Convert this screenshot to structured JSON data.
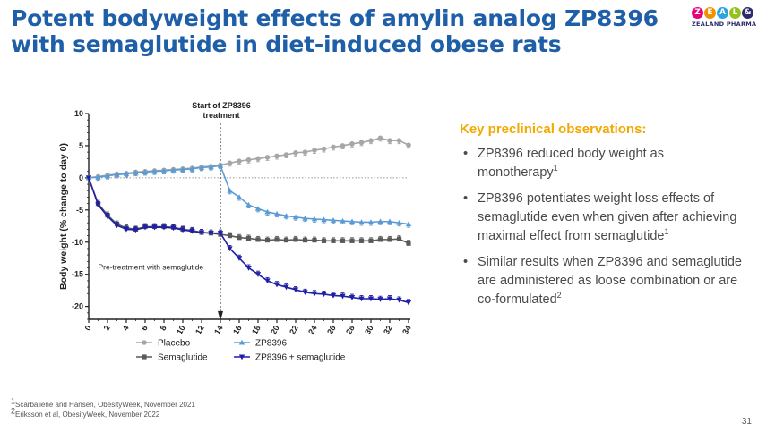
{
  "slide": {
    "title_line1": "Potent bodyweight effects of amylin analog ZP8396",
    "title_line2": "with semaglutide in diet-induced obese rats",
    "page_number": "31"
  },
  "logo": {
    "letters": [
      "Z",
      "E",
      "A",
      "L",
      "&"
    ],
    "letter_colors": [
      "#e6007e",
      "#f29100",
      "#2aa5df",
      "#95c11f",
      "#2c2c6c"
    ],
    "subtitle": "ZEALAND PHARMA"
  },
  "observations": {
    "title": "Key preclinical observations:",
    "bullet_glyph": "•",
    "items": [
      {
        "text": "ZP8396 reduced body weight as monotherapy",
        "sup": "1"
      },
      {
        "text": "ZP8396 potentiates weight loss effects of semaglutide even when given after achieving maximal effect from semaglutide",
        "sup": "1"
      },
      {
        "text": "Similar results when ZP8396 and semaglutide are administered as loose combination or are co-formulated",
        "sup": "2"
      }
    ]
  },
  "footnotes": [
    {
      "sup": "1",
      "text": "Scarbaliene and Hansen, ObesityWeek, November 2021"
    },
    {
      "sup": "2",
      "text": "Eriksson et al, ObesityWeek, November 2022"
    }
  ],
  "chart_data": {
    "type": "line",
    "title": "",
    "xlabel": "",
    "ylabel": "Body weight (% change to day 0)",
    "xlim": [
      0,
      34
    ],
    "ylim": [
      -22,
      10
    ],
    "xticks": [
      "0",
      "2",
      "4",
      "6",
      "8",
      "10",
      "12",
      "14",
      "16",
      "18",
      "20",
      "22",
      "24",
      "26",
      "28",
      "30",
      "32",
      "34"
    ],
    "yticks": [
      "10",
      "5",
      "0",
      "-5",
      "-10",
      "-15",
      "-20"
    ],
    "legend_position": "bottom",
    "annotations": {
      "start_label_line1": "Start of ZP8396",
      "start_label_line2": "treatment",
      "start_day": 14,
      "pretreatment_label": "Pre-treatment with semaglutide"
    },
    "series": [
      {
        "name": "Placebo",
        "color": "#a6a6a6",
        "marker": "circle",
        "x": [
          0,
          1,
          2,
          3,
          4,
          5,
          6,
          7,
          8,
          9,
          10,
          11,
          12,
          13,
          14,
          15,
          16,
          17,
          18,
          19,
          20,
          21,
          22,
          23,
          24,
          25,
          26,
          27,
          28,
          29,
          30,
          31,
          32,
          33,
          34
        ],
        "values": [
          0,
          0.2,
          0.4,
          0.6,
          0.7,
          0.9,
          1.0,
          1.1,
          1.2,
          1.3,
          1.4,
          1.5,
          1.7,
          1.8,
          2.0,
          2.3,
          2.6,
          2.8,
          3.0,
          3.2,
          3.4,
          3.6,
          3.9,
          4.0,
          4.3,
          4.5,
          4.8,
          5.0,
          5.3,
          5.5,
          5.8,
          6.2,
          5.8,
          5.8,
          5.1
        ]
      },
      {
        "name": "Semaglutide",
        "color": "#595959",
        "marker": "square",
        "x": [
          0,
          1,
          2,
          3,
          4,
          5,
          6,
          7,
          8,
          9,
          10,
          11,
          12,
          13,
          14,
          15,
          16,
          17,
          18,
          19,
          20,
          21,
          22,
          23,
          24,
          25,
          26,
          27,
          28,
          29,
          30,
          31,
          32,
          33,
          34
        ],
        "values": [
          0,
          -4.0,
          -5.8,
          -7.2,
          -7.8,
          -8.0,
          -7.6,
          -7.6,
          -7.6,
          -7.7,
          -8.0,
          -8.2,
          -8.5,
          -8.6,
          -8.8,
          -9.0,
          -9.3,
          -9.4,
          -9.6,
          -9.7,
          -9.6,
          -9.7,
          -9.6,
          -9.7,
          -9.7,
          -9.8,
          -9.8,
          -9.8,
          -9.8,
          -9.8,
          -9.8,
          -9.6,
          -9.6,
          -9.5,
          -10.2
        ]
      },
      {
        "name": "ZP8396",
        "color": "#5b9bd5",
        "marker": "triangle-up",
        "x": [
          0,
          1,
          2,
          3,
          4,
          5,
          6,
          7,
          8,
          9,
          10,
          11,
          12,
          13,
          14,
          15,
          16,
          17,
          18,
          19,
          20,
          21,
          22,
          23,
          24,
          25,
          26,
          27,
          28,
          29,
          30,
          31,
          32,
          33,
          34
        ],
        "values": [
          0,
          0.1,
          0.3,
          0.5,
          0.6,
          0.8,
          0.9,
          1.0,
          1.1,
          1.2,
          1.3,
          1.4,
          1.6,
          1.7,
          1.9,
          -2.0,
          -3.0,
          -4.2,
          -4.8,
          -5.3,
          -5.6,
          -5.9,
          -6.1,
          -6.3,
          -6.4,
          -6.5,
          -6.6,
          -6.7,
          -6.8,
          -6.9,
          -6.9,
          -6.8,
          -6.8,
          -7.0,
          -7.2
        ]
      },
      {
        "name": "ZP8396 + semaglutide",
        "color": "#1f1fa8",
        "marker": "triangle-down",
        "x": [
          0,
          1,
          2,
          3,
          4,
          5,
          6,
          7,
          8,
          9,
          10,
          11,
          12,
          13,
          14,
          15,
          16,
          17,
          18,
          19,
          20,
          21,
          22,
          23,
          24,
          25,
          26,
          27,
          28,
          29,
          30,
          31,
          32,
          33,
          34
        ],
        "values": [
          0,
          -4.2,
          -6.0,
          -7.4,
          -8.0,
          -8.1,
          -7.7,
          -7.7,
          -7.7,
          -7.8,
          -8.1,
          -8.3,
          -8.5,
          -8.6,
          -8.6,
          -11.0,
          -12.5,
          -14.0,
          -15.0,
          -16.0,
          -16.6,
          -17.0,
          -17.4,
          -17.8,
          -18.0,
          -18.1,
          -18.3,
          -18.4,
          -18.6,
          -18.8,
          -18.8,
          -18.9,
          -18.8,
          -19.0,
          -19.4
        ]
      }
    ]
  }
}
